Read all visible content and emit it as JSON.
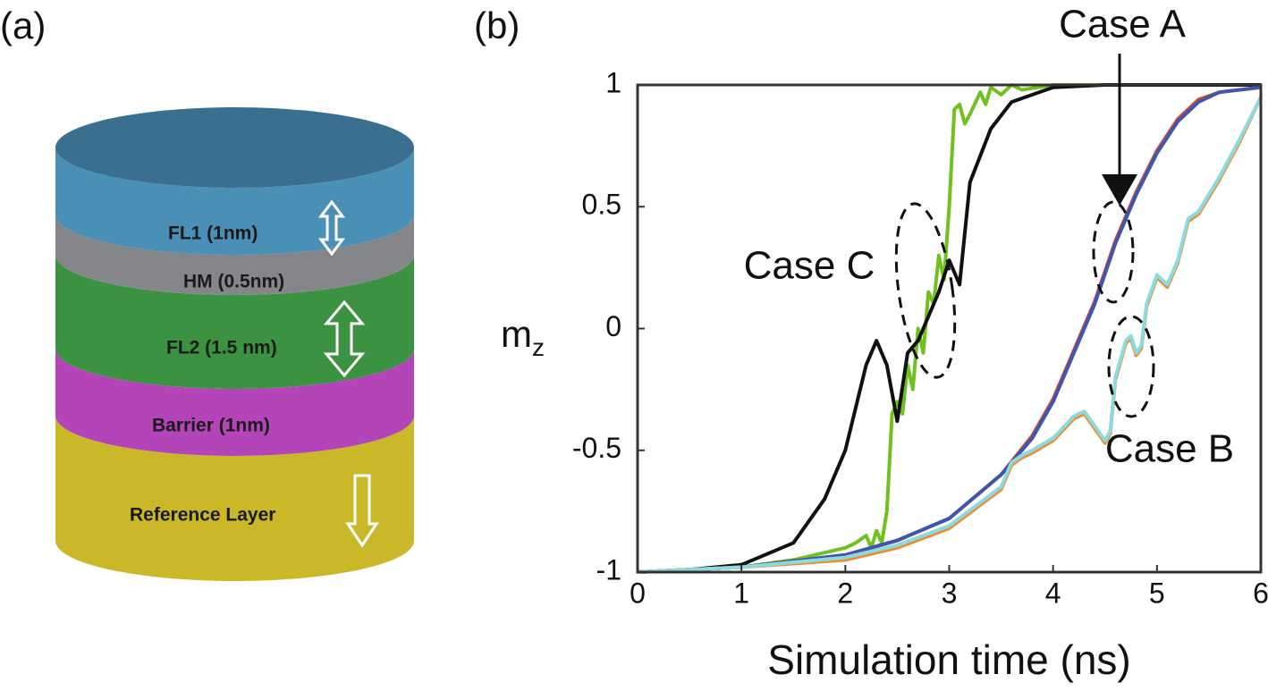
{
  "diagram": {
    "panel_label": "(a)",
    "layers": [
      "FL1 (1nm)",
      "HM (0.5nm)",
      "FL2 (1.5 nm)",
      "Barrier (1nm)",
      "Reference Layer"
    ]
  },
  "chart_data": {
    "type": "line",
    "panel_label": "(b)",
    "xlabel": "Simulation time (ns)",
    "ylabel": {
      "main": "m",
      "sub": "z"
    },
    "xlim": [
      0,
      6
    ],
    "xticks": [
      0,
      1,
      2,
      3,
      4,
      5,
      6
    ],
    "ylim": [
      -1,
      1
    ],
    "yticks": [
      -1,
      -0.5,
      0,
      0.5,
      1
    ],
    "annotations": [
      "Case A",
      "Case B",
      "Case C"
    ],
    "series": [
      {
        "color": "#6fc21e",
        "x": [
          0,
          1,
          1.5,
          2.0,
          2.1,
          2.2,
          2.25,
          2.3,
          2.35,
          2.4,
          2.45,
          2.5,
          2.55,
          2.6,
          2.65,
          2.7,
          2.75,
          2.8,
          2.85,
          2.9,
          2.95,
          3.0,
          3.05,
          3.1,
          3.15,
          3.2,
          3.3,
          3.35,
          3.4,
          3.5,
          3.6,
          3.7,
          4.0,
          6.0
        ],
        "values": [
          -1,
          -0.98,
          -0.95,
          -0.9,
          -0.88,
          -0.85,
          -0.9,
          -0.83,
          -0.88,
          -0.75,
          -0.35,
          -0.3,
          -0.35,
          -0.15,
          -0.25,
          0,
          -0.1,
          0.15,
          0.1,
          0.3,
          0.2,
          0.5,
          0.9,
          0.92,
          0.84,
          0.88,
          0.97,
          0.92,
          0.99,
          0.96,
          1,
          0.98,
          1,
          1
        ]
      },
      {
        "color": "#111111",
        "x": [
          0,
          0.5,
          1.0,
          1.5,
          1.8,
          2.0,
          2.2,
          2.3,
          2.4,
          2.5,
          2.6,
          2.7,
          2.8,
          2.9,
          3.0,
          3.1,
          3.2,
          3.4,
          3.6,
          4.0,
          4.5,
          6.0
        ],
        "values": [
          -1,
          -0.99,
          -0.97,
          -0.88,
          -0.7,
          -0.5,
          -0.15,
          -0.05,
          -0.15,
          -0.38,
          -0.1,
          -0.05,
          0.05,
          0.15,
          0.28,
          0.18,
          0.6,
          0.82,
          0.93,
          0.99,
          1,
          1
        ]
      },
      {
        "color": "#d9472b",
        "x": [
          0,
          1,
          2,
          2.5,
          3,
          3.5,
          3.8,
          4.0,
          4.2,
          4.4,
          4.6,
          4.8,
          5.0,
          5.2,
          5.4,
          5.6,
          6.0
        ],
        "values": [
          -1,
          -0.98,
          -0.93,
          -0.87,
          -0.78,
          -0.6,
          -0.44,
          -0.29,
          -0.09,
          0.11,
          0.36,
          0.56,
          0.73,
          0.86,
          0.94,
          0.97,
          0.99
        ]
      },
      {
        "color": "#3f56b0",
        "x": [
          0,
          1,
          2,
          2.5,
          3,
          3.5,
          3.8,
          4.0,
          4.2,
          4.4,
          4.6,
          4.8,
          5.0,
          5.2,
          5.4,
          5.6,
          6.0
        ],
        "values": [
          -1,
          -0.98,
          -0.93,
          -0.87,
          -0.78,
          -0.6,
          -0.45,
          -0.3,
          -0.1,
          0.1,
          0.35,
          0.55,
          0.72,
          0.85,
          0.93,
          0.97,
          0.99
        ]
      },
      {
        "color": "#f08c2e",
        "x": [
          0,
          1,
          2,
          2.5,
          3,
          3.5,
          3.6,
          3.7,
          3.8,
          4.0,
          4.2,
          4.3,
          4.4,
          4.5,
          4.55,
          4.6,
          4.7,
          4.75,
          4.8,
          4.85,
          4.9,
          5.0,
          5.1,
          5.2,
          5.3,
          5.4,
          5.5,
          5.6,
          5.8,
          6.0
        ],
        "values": [
          -1,
          -0.98,
          -0.95,
          -0.9,
          -0.82,
          -0.66,
          -0.56,
          -0.53,
          -0.51,
          -0.46,
          -0.37,
          -0.35,
          -0.41,
          -0.47,
          -0.43,
          -0.21,
          -0.06,
          -0.04,
          -0.11,
          -0.08,
          0.09,
          0.21,
          0.17,
          0.27,
          0.44,
          0.47,
          0.54,
          0.61,
          0.77,
          0.95
        ]
      },
      {
        "color": "#8adbe0",
        "x": [
          0,
          1,
          2,
          2.5,
          3,
          3.5,
          3.6,
          3.7,
          3.8,
          4.0,
          4.2,
          4.3,
          4.4,
          4.5,
          4.55,
          4.6,
          4.7,
          4.75,
          4.8,
          4.85,
          4.9,
          5.0,
          5.1,
          5.2,
          5.3,
          5.4,
          5.5,
          5.6,
          5.8,
          6.0
        ],
        "values": [
          -1,
          -0.98,
          -0.94,
          -0.89,
          -0.81,
          -0.65,
          -0.55,
          -0.52,
          -0.5,
          -0.45,
          -0.36,
          -0.34,
          -0.4,
          -0.46,
          -0.42,
          -0.2,
          -0.05,
          -0.03,
          -0.1,
          -0.07,
          0.1,
          0.22,
          0.18,
          0.28,
          0.45,
          0.48,
          0.55,
          0.62,
          0.78,
          0.95
        ]
      }
    ]
  }
}
